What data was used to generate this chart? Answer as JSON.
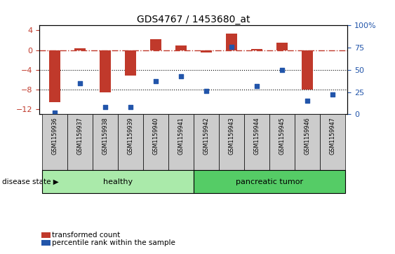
{
  "title": "GDS4767 / 1453680_at",
  "samples": [
    "GSM1159936",
    "GSM1159937",
    "GSM1159938",
    "GSM1159939",
    "GSM1159940",
    "GSM1159941",
    "GSM1159942",
    "GSM1159943",
    "GSM1159944",
    "GSM1159945",
    "GSM1159946",
    "GSM1159947"
  ],
  "red_values": [
    -10.5,
    0.4,
    -8.5,
    -5.2,
    2.2,
    1.0,
    -0.5,
    3.3,
    0.2,
    1.5,
    -8.0,
    -0.1
  ],
  "blue_values_raw": [
    2,
    35,
    8,
    8,
    37,
    43,
    26,
    76,
    32,
    50,
    15,
    22
  ],
  "ylim_left": [
    -13,
    5
  ],
  "ylim_right": [
    0,
    100
  ],
  "bar_color": "#c0392b",
  "dot_color": "#2255aa",
  "dashed_line_color": "#c0392b",
  "grid_color": "#000000",
  "healthy_color": "#aaeaaa",
  "tumor_color": "#55cc66",
  "label_bg_color": "#cccccc",
  "healthy_samples": 6,
  "tumor_samples": 6,
  "healthy_label": "healthy",
  "tumor_label": "pancreatic tumor",
  "legend_red": "transformed count",
  "legend_blue": "percentile rank within the sample",
  "disease_state_label": "disease state",
  "tick_left": [
    -12,
    -8,
    -4,
    0,
    4
  ],
  "tick_right": [
    0,
    25,
    50,
    75,
    100
  ],
  "bar_width": 0.45
}
